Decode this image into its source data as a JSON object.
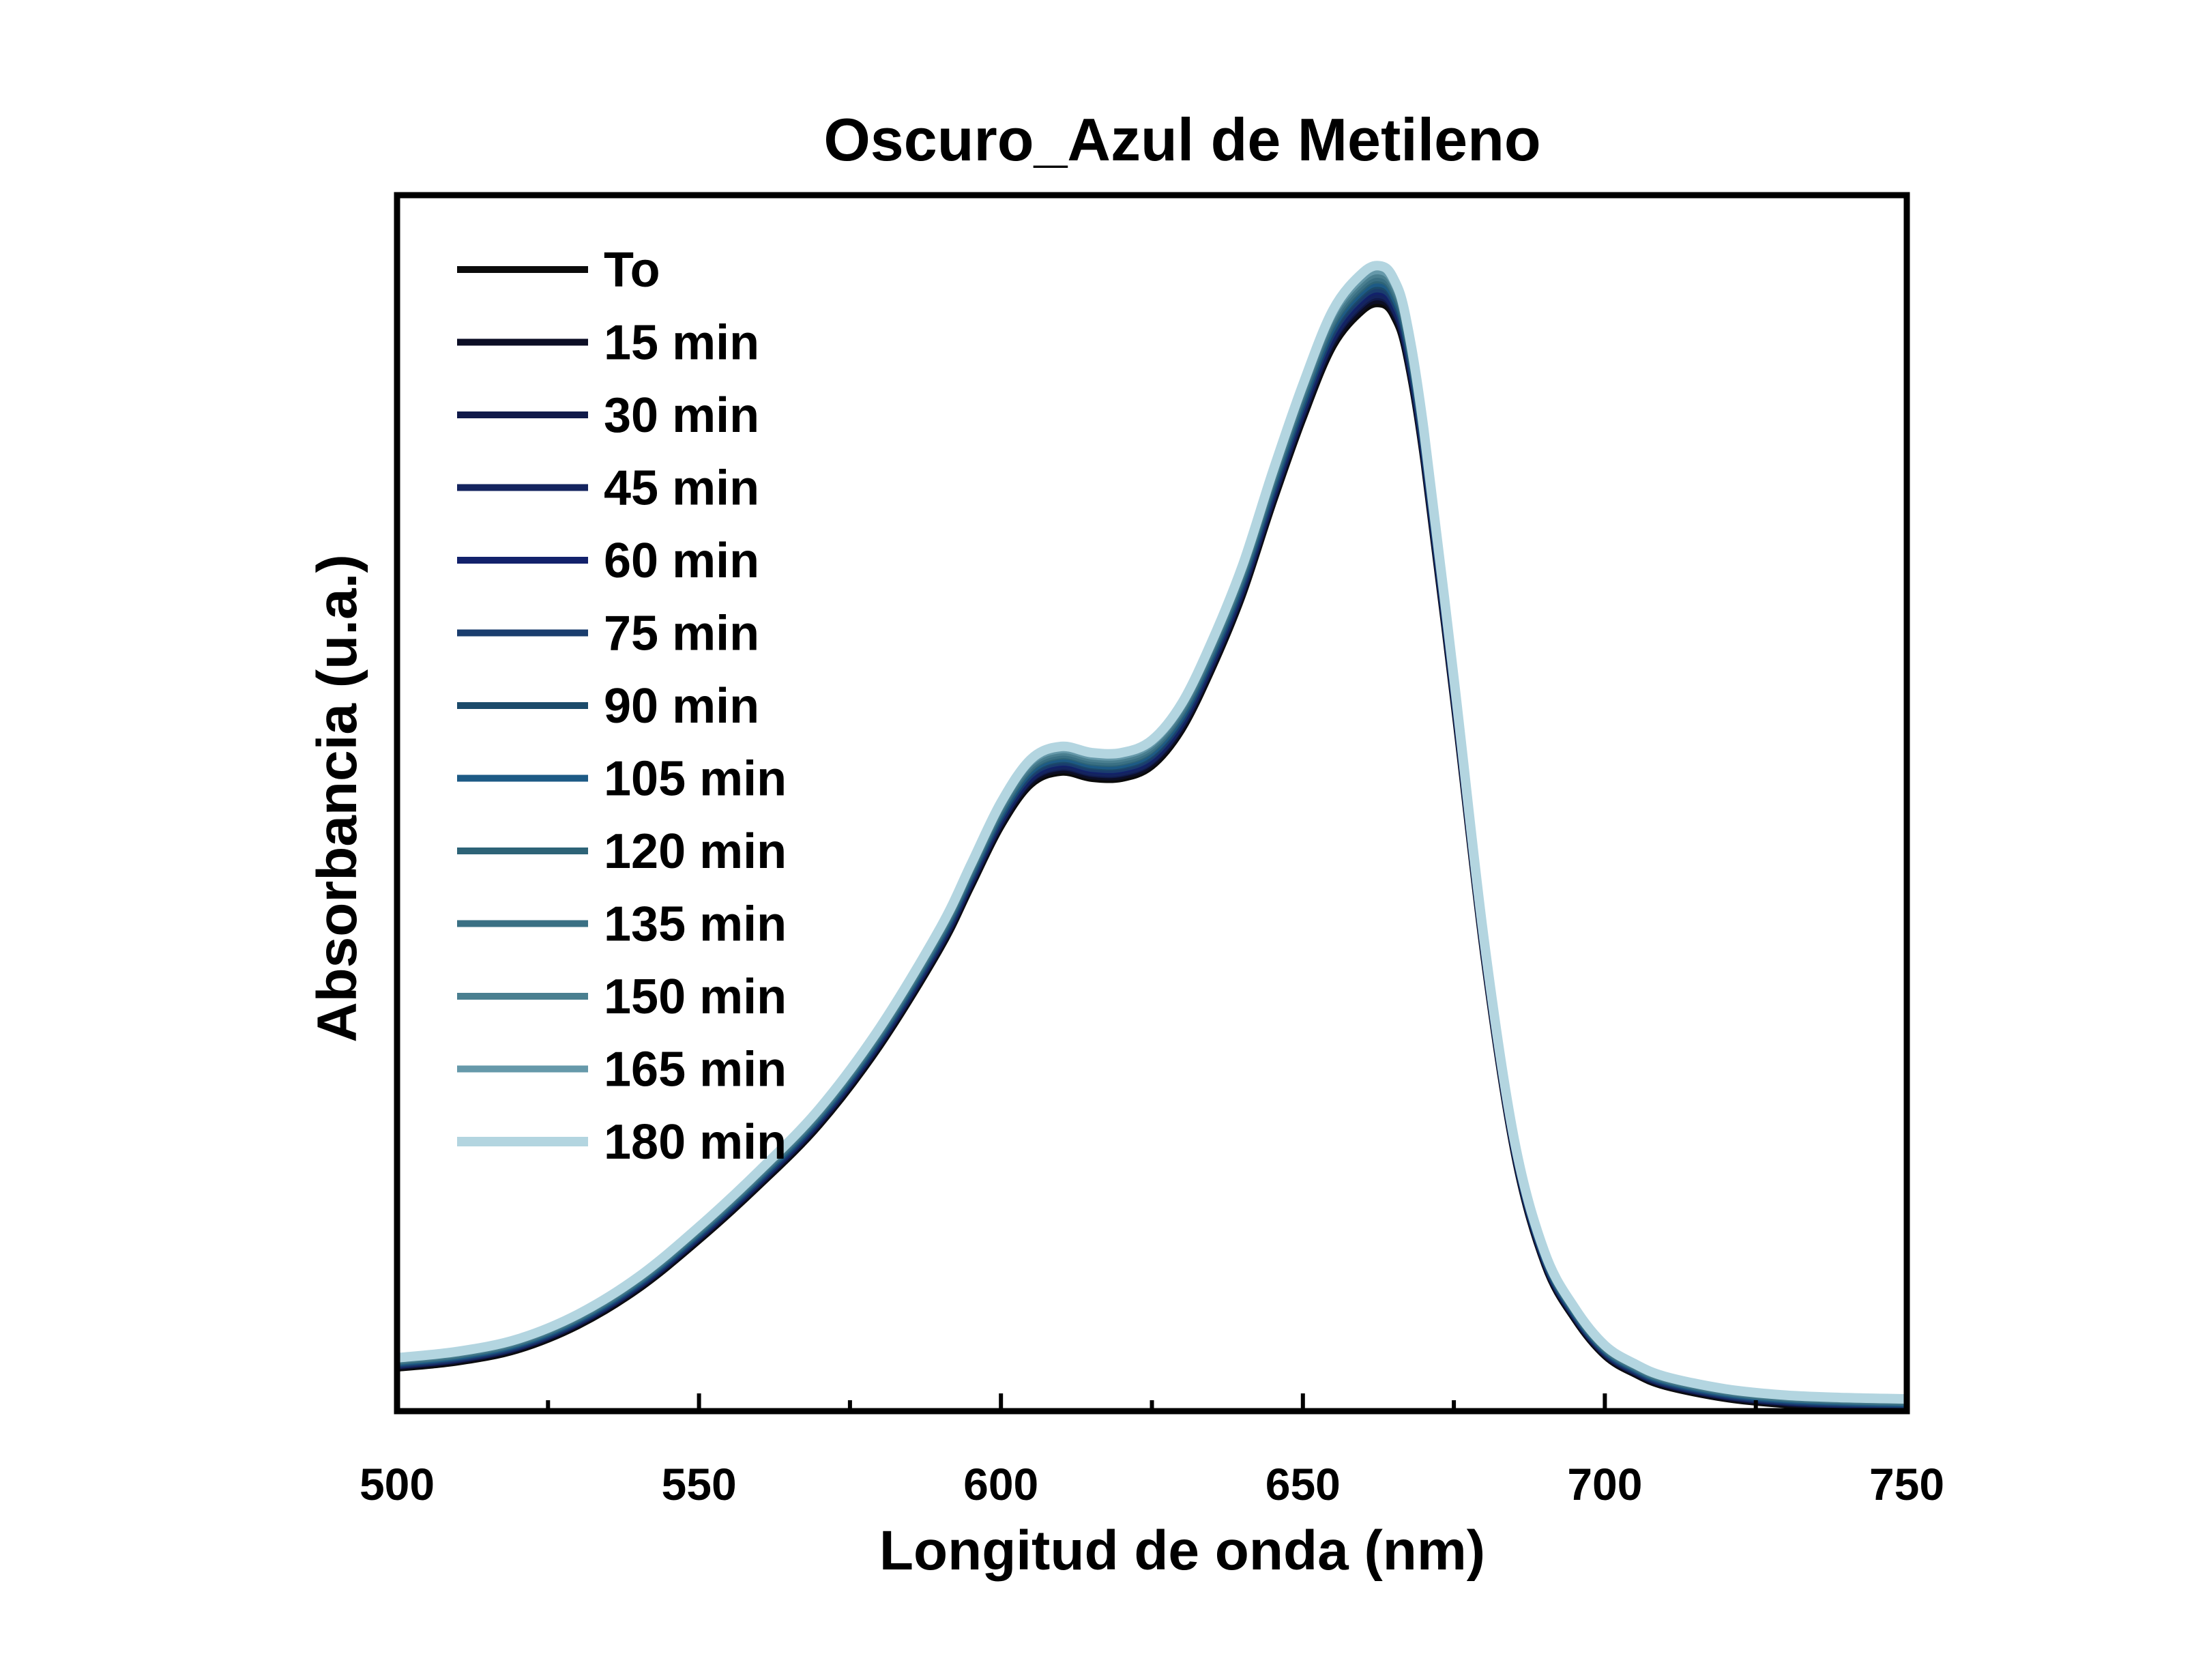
{
  "chart_data": {
    "type": "line",
    "title": "Oscuro_Azul de Metileno",
    "xlabel": "Longitud de onda (nm)",
    "ylabel": "Absorbancia (u.a.)",
    "xlim": [
      500,
      750
    ],
    "ylim": [
      0,
      1
    ],
    "xticks": [
      500,
      550,
      600,
      650,
      700,
      750
    ],
    "y_tick_labels_shown": false,
    "grid": false,
    "legend_position": "top-left",
    "note_y": "y values are relative absorbance (no y tick labels printed)",
    "base_curve": {
      "x": [
        500,
        510,
        520,
        530,
        540,
        550,
        560,
        570,
        580,
        590,
        595,
        600,
        605,
        610,
        615,
        620,
        625,
        630,
        635,
        640,
        645,
        650,
        655,
        660,
        663,
        665,
        667,
        670,
        675,
        680,
        685,
        690,
        695,
        700,
        705,
        710,
        720,
        730,
        740,
        750
      ],
      "y": [
        0.035,
        0.04,
        0.05,
        0.07,
        0.1,
        0.14,
        0.185,
        0.235,
        0.3,
        0.38,
        0.43,
        0.48,
        0.515,
        0.525,
        0.52,
        0.52,
        0.53,
        0.56,
        0.61,
        0.67,
        0.745,
        0.815,
        0.875,
        0.905,
        0.91,
        0.9,
        0.87,
        0.78,
        0.58,
        0.37,
        0.21,
        0.12,
        0.075,
        0.045,
        0.03,
        0.02,
        0.01,
        0.005,
        0.003,
        0.002
      ]
    },
    "series": [
      {
        "name": "To",
        "color": "#0b0b0b",
        "scale": 1.0,
        "offset": 0.0
      },
      {
        "name": "15 min",
        "color": "#0c0e25",
        "scale": 1.002,
        "offset": 0.001
      },
      {
        "name": "30 min",
        "color": "#101a4a",
        "scale": 1.004,
        "offset": 0.002
      },
      {
        "name": "45 min",
        "color": "#14245f",
        "scale": 1.006,
        "offset": 0.002
      },
      {
        "name": "60 min",
        "color": "#12216b",
        "scale": 1.008,
        "offset": 0.003
      },
      {
        "name": "75 min",
        "color": "#1a3d6e",
        "scale": 1.01,
        "offset": 0.003
      },
      {
        "name": "90 min",
        "color": "#1b4a6a",
        "scale": 1.012,
        "offset": 0.004
      },
      {
        "name": "105 min",
        "color": "#1d5a85",
        "scale": 1.014,
        "offset": 0.004
      },
      {
        "name": "120 min",
        "color": "#2d6377",
        "scale": 1.016,
        "offset": 0.005
      },
      {
        "name": "135 min",
        "color": "#3a7084",
        "scale": 1.018,
        "offset": 0.005
      },
      {
        "name": "150 min",
        "color": "#4a7f90",
        "scale": 1.02,
        "offset": 0.006
      },
      {
        "name": "165 min",
        "color": "#6699aa",
        "scale": 1.022,
        "offset": 0.007
      },
      {
        "name": "180 min",
        "color": "#b3d5e0",
        "scale": 1.026,
        "offset": 0.008
      }
    ]
  }
}
